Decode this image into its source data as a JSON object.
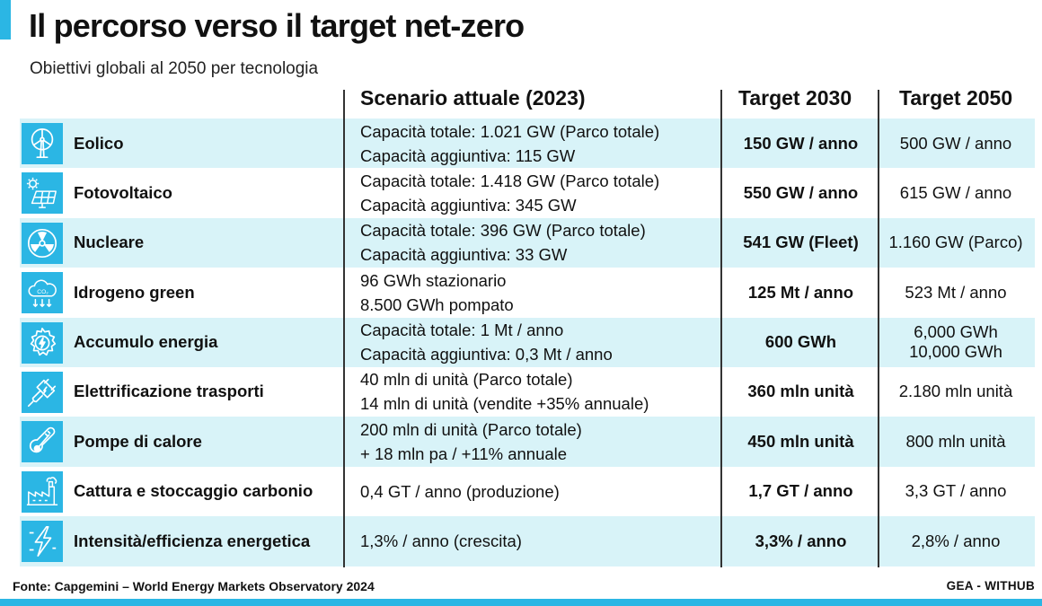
{
  "title": "Il percorso verso il target net-zero",
  "subtitle": "Obiettivi globali al 2050 per tecnologia",
  "columns": {
    "current": "Scenario attuale (2023)",
    "target2030": "Target 2030",
    "target2050": "Target 2050"
  },
  "rows": [
    {
      "icon": "wind-turbine-icon",
      "tech": "Eolico",
      "cur1": "Capacità totale: 1.021 GW (Parco totale)",
      "cur2": "Capacità aggiuntiva: 115 GW",
      "t2030": "150 GW / anno",
      "t2050a": "500 GW / anno",
      "t2050b": ""
    },
    {
      "icon": "solar-panel-icon",
      "tech": "Fotovoltaico",
      "cur1": "Capacità totale: 1.418 GW (Parco totale)",
      "cur2": "Capacità aggiuntiva: 345 GW",
      "t2030": "550 GW / anno",
      "t2050a": "615 GW / anno",
      "t2050b": ""
    },
    {
      "icon": "radiation-icon",
      "tech": "Nucleare",
      "cur1": "Capacità totale: 396 GW (Parco totale)",
      "cur2": "Capacità aggiuntiva: 33 GW",
      "t2030": "541 GW (Fleet)",
      "t2050a": "1.160 GW (Parco)",
      "t2050b": ""
    },
    {
      "icon": "hydrogen-cloud-icon",
      "tech": "Idrogeno green",
      "cur1": "96 GWh stazionario",
      "cur2": "8.500 GWh pompato",
      "t2030": "125 Mt / anno",
      "t2050a": "523 Mt / anno",
      "t2050b": ""
    },
    {
      "icon": "gear-energy-icon",
      "tech": "Accumulo energia",
      "cur1": "Capacità totale: 1 Mt / anno",
      "cur2": "Capacità aggiuntiva: 0,3 Mt / anno",
      "t2030": "600 GWh",
      "t2050a": "6,000 GWh",
      "t2050b": "10,000 GWh"
    },
    {
      "icon": "electric-plug-icon",
      "tech": "Elettrificazione trasporti",
      "cur1": "40 mln di unità (Parco totale)",
      "cur2": "14 mln di unità (vendite +35% annuale)",
      "t2030": "360 mln unità",
      "t2050a": "2.180 mln unità",
      "t2050b": ""
    },
    {
      "icon": "thermometer-icon",
      "tech": "Pompe di calore",
      "cur1": "200 mln di unità (Parco totale)",
      "cur2": "+ 18 mln pa / +11% annuale",
      "t2030": "450 mln unità",
      "t2050a": "800 mln unità",
      "t2050b": ""
    },
    {
      "icon": "factory-icon",
      "tech": "Cattura e stoccaggio carbonio",
      "cur1": "0,4 GT / anno (produzione)",
      "cur2": "",
      "t2030": "1,7 GT / anno",
      "t2050a": "3,3 GT / anno",
      "t2050b": ""
    },
    {
      "icon": "lightning-icon",
      "tech": "Intensità/efficienza energetica",
      "cur1": "1,3% / anno (crescita)",
      "cur2": "",
      "t2030": "3,3% / anno",
      "t2050a": "2,8% / anno",
      "t2050b": ""
    }
  ],
  "footer": {
    "source": "Fonte: Capgemini – World Energy Markets Observatory 2024",
    "brand": "GEA - WITHUB"
  },
  "colors": {
    "accent": "#2bb6e4",
    "row_alt": "#d8f3f8"
  }
}
